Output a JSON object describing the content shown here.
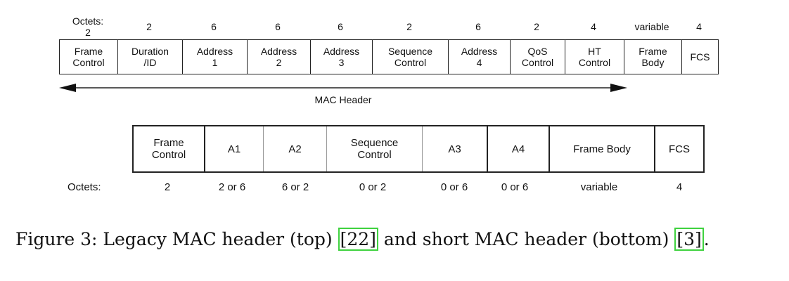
{
  "legacy": {
    "octets_label": "Octets:",
    "octets_label_value": "2",
    "fields": [
      {
        "label": "Frame\nControl",
        "octets": "2"
      },
      {
        "label": "Duration\n/ID",
        "octets": "2"
      },
      {
        "label": "Address\n1",
        "octets": "6"
      },
      {
        "label": "Address\n2",
        "octets": "6"
      },
      {
        "label": "Address\n3",
        "octets": "6"
      },
      {
        "label": "Sequence\nControl",
        "octets": "2"
      },
      {
        "label": "Address\n4",
        "octets": "6"
      },
      {
        "label": "QoS\nControl",
        "octets": "2"
      },
      {
        "label": "HT\nControl",
        "octets": "4"
      },
      {
        "label": "Frame\nBody",
        "octets": "variable"
      },
      {
        "label": "FCS",
        "octets": "4"
      }
    ],
    "span_label": "MAC Header"
  },
  "short": {
    "octets_label": "Octets:",
    "fields": [
      {
        "label": "Frame\nControl",
        "octets": "2"
      },
      {
        "label": "A1",
        "octets": "2 or 6"
      },
      {
        "label": "A2",
        "octets": "6 or 2"
      },
      {
        "label": "Sequence\nControl",
        "octets": "0 or 2"
      },
      {
        "label": "A3",
        "octets": "0 or 6"
      },
      {
        "label": "A4",
        "octets": "0 or 6"
      },
      {
        "label": "Frame Body",
        "octets": "variable"
      },
      {
        "label": "FCS",
        "octets": "4"
      }
    ]
  },
  "caption": {
    "prefix": "Figure 3:  Legacy MAC header (top) ",
    "ref1": "[22]",
    "middle": " and short MAC header (bottom) ",
    "ref2": "[3]",
    "suffix": "."
  },
  "colors": {
    "citation_box": "#3fd23f",
    "line": "#222222"
  }
}
